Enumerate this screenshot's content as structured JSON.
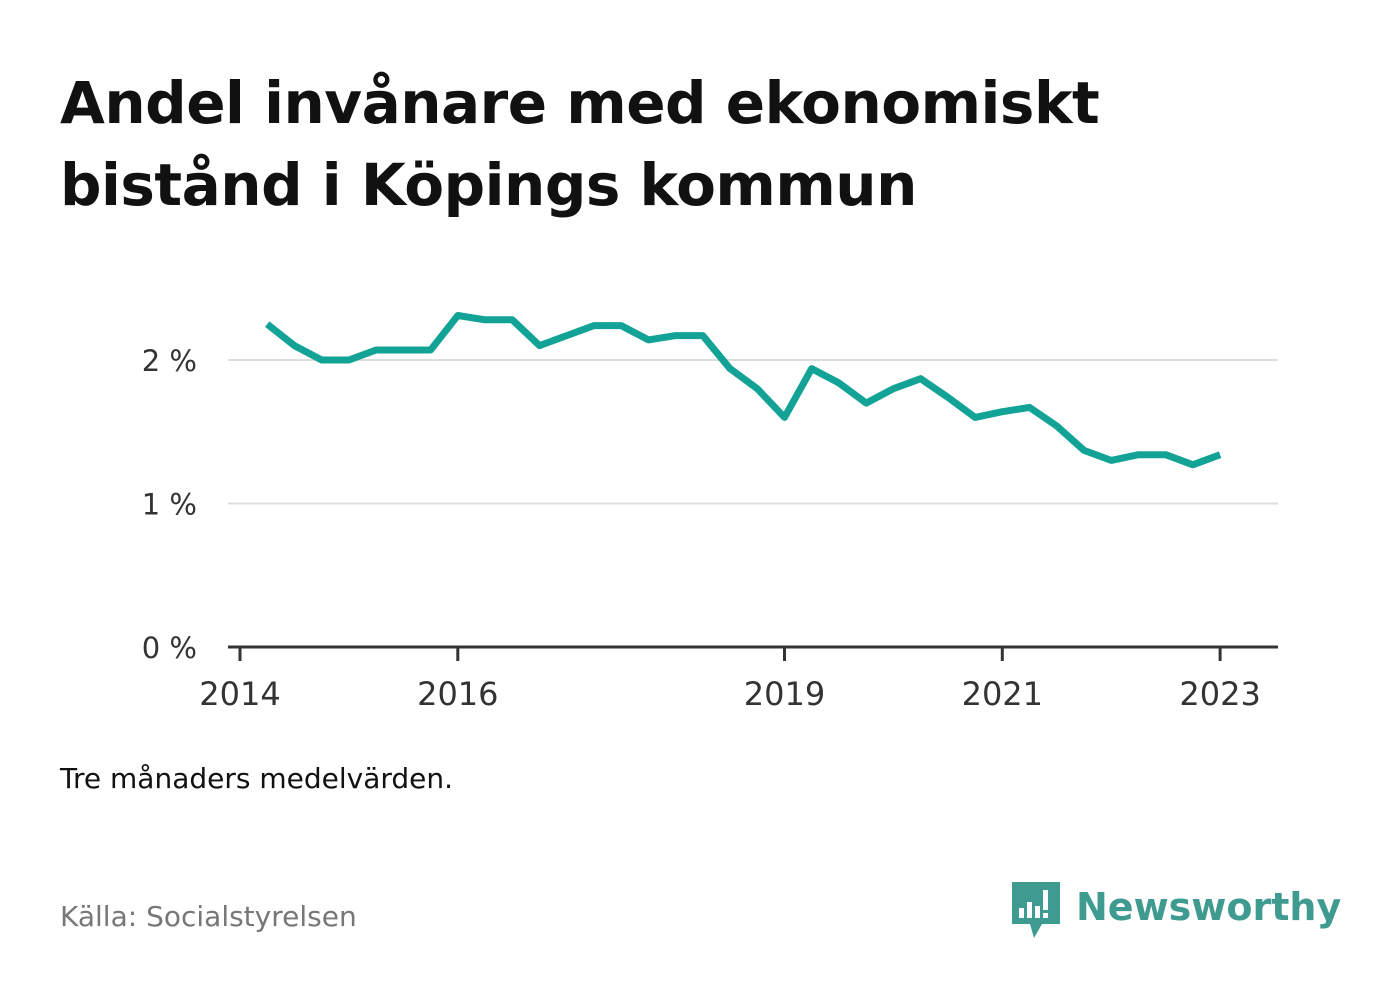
{
  "title_lines": [
    "Andel invånare med ekonomiskt",
    "bistånd i Köpings kommun"
  ],
  "note": "Tre månaders medelvärden.",
  "source": "Källa: Socialstyrelsen",
  "brand": {
    "name": "Newsworthy",
    "icon": "bar-chart-speech-bubble-icon",
    "color": "#3f9a8f"
  },
  "colors": {
    "line": "#12a396",
    "grid": "#dddddd",
    "axis": "#333333",
    "text": "#111111"
  },
  "chart_data": {
    "type": "line",
    "title": "Andel invånare med ekonomiskt bistånd i Köpings kommun",
    "xlabel": "",
    "ylabel": "",
    "x_ticks": [
      "2014",
      "2016",
      "2019",
      "2021",
      "2023"
    ],
    "y_ticks": [
      "0 %",
      "1 %",
      "2 %"
    ],
    "ylim": [
      0,
      2.4
    ],
    "grid": true,
    "series": [
      {
        "x": [
          "2014-04",
          "2014-07",
          "2014-10",
          "2015-01",
          "2015-04",
          "2015-07",
          "2015-10",
          "2016-01",
          "2016-04",
          "2016-07",
          "2016-10",
          "2017-01",
          "2017-04",
          "2017-07",
          "2017-10",
          "2018-01",
          "2018-04",
          "2018-07",
          "2018-10",
          "2019-01",
          "2019-04",
          "2019-07",
          "2019-10",
          "2020-01",
          "2020-04",
          "2020-07",
          "2020-10",
          "2021-01",
          "2021-04",
          "2021-07",
          "2021-10",
          "2022-01",
          "2022-04",
          "2022-07",
          "2022-10",
          "2023-01"
        ],
        "values": [
          2.25,
          2.1,
          2.0,
          2.0,
          2.07,
          2.07,
          2.07,
          2.31,
          2.28,
          2.28,
          2.1,
          2.17,
          2.24,
          2.24,
          2.14,
          2.17,
          2.17,
          1.94,
          1.8,
          1.6,
          1.94,
          1.84,
          1.7,
          1.8,
          1.87,
          1.74,
          1.6,
          1.64,
          1.67,
          1.54,
          1.37,
          1.3,
          1.34,
          1.34,
          1.27,
          1.34
        ]
      }
    ]
  }
}
